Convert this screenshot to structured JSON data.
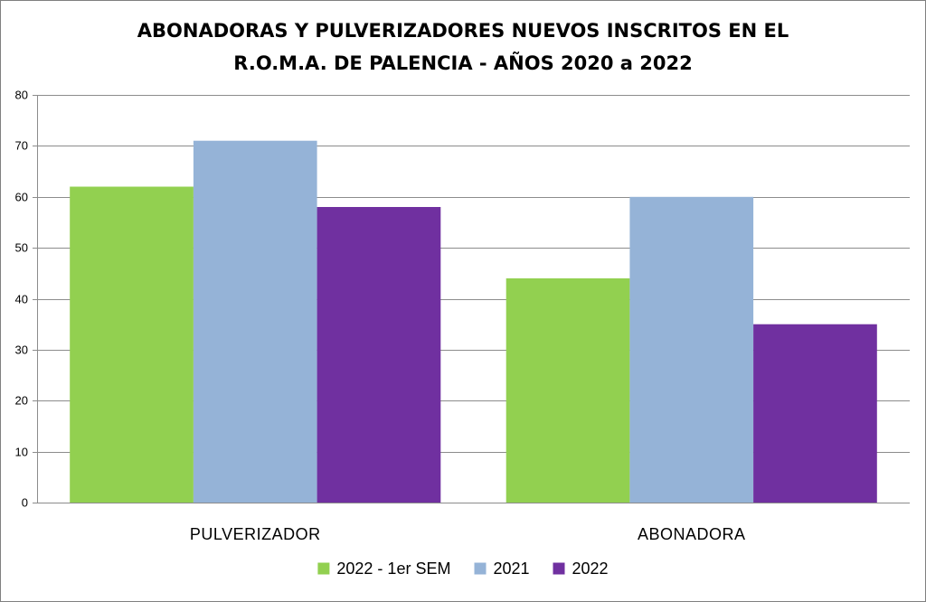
{
  "chart_data": {
    "type": "bar",
    "title_lines": [
      "ABONADORAS Y PULVERIZADORES NUEVOS INSCRITOS EN EL",
      "R.O.M.A. DE PALENCIA - AÑOS 2020 a 2022"
    ],
    "categories": [
      "PULVERIZADOR",
      "ABONADORA"
    ],
    "series": [
      {
        "name": "2022 - 1er SEM",
        "color": "#92D050",
        "values": [
          62,
          44
        ]
      },
      {
        "name": "2021",
        "color": "#95B3D7",
        "values": [
          71,
          60
        ]
      },
      {
        "name": "2022",
        "color": "#7030A0",
        "values": [
          58,
          35
        ]
      }
    ],
    "ylim": [
      0,
      80
    ],
    "yticks": [
      0,
      10,
      20,
      30,
      40,
      50,
      60,
      70,
      80
    ],
    "grid": true,
    "legend_position": "bottom",
    "xlabel": "",
    "ylabel": ""
  }
}
